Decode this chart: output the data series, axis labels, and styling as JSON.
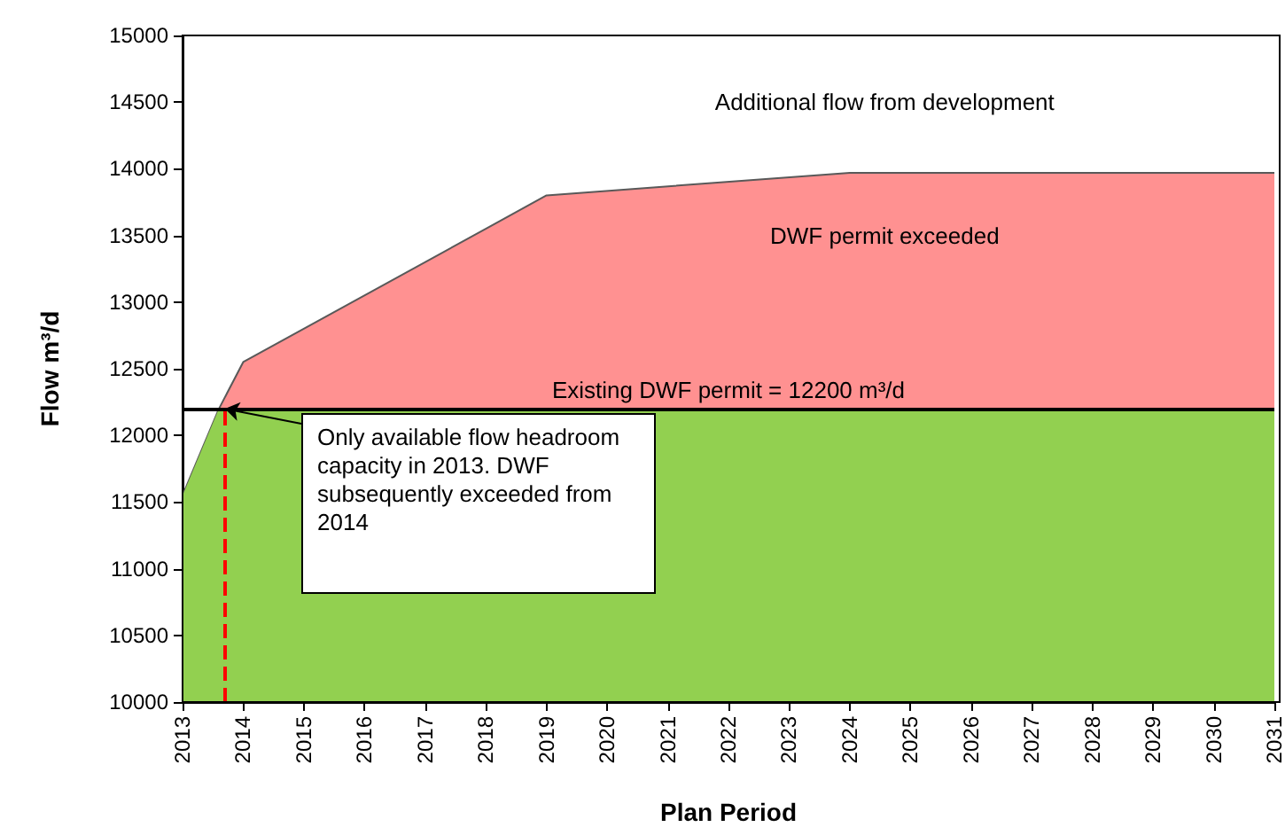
{
  "chart_data": {
    "type": "area",
    "xlabel": "Plan Period",
    "ylabel": "Flow m³/d",
    "x": [
      2013,
      2013.6,
      2014,
      2019,
      2024,
      2031
    ],
    "series": [
      {
        "color": "#92d050",
        "values": [
          11550,
          12200,
          12200,
          12200,
          12200,
          12200
        ]
      },
      {
        "color": "#ff9191",
        "values": [
          11550,
          12200,
          12550,
          13800,
          13970,
          13970
        ]
      }
    ],
    "xlim": [
      2013,
      2031
    ],
    "xticks": [
      2013,
      2014,
      2015,
      2016,
      2017,
      2018,
      2019,
      2020,
      2021,
      2022,
      2023,
      2024,
      2025,
      2026,
      2027,
      2028,
      2029,
      2030,
      2031
    ],
    "ylim": [
      10000,
      15000
    ],
    "yticks": [
      10000,
      10500,
      11000,
      11500,
      12000,
      12500,
      13000,
      13500,
      14000,
      14500,
      15000
    ],
    "ref_lines": [
      {
        "axis": "y",
        "value": 12200,
        "label": "Existing DWF permit = 12200 m³/d",
        "color": "#000000",
        "line_style": "solid"
      },
      {
        "axis": "x",
        "value": 2013.7,
        "color": "#ff0000",
        "line_style": "dashed"
      }
    ],
    "annotations": [
      "Additional flow from development",
      "DWF permit exceeded",
      {
        "text": "Only available flow headroom capacity in 2013. DWF subsequently exceeded from 2014",
        "x": 2013.7,
        "y": 12200
      }
    ],
    "grid": false
  }
}
